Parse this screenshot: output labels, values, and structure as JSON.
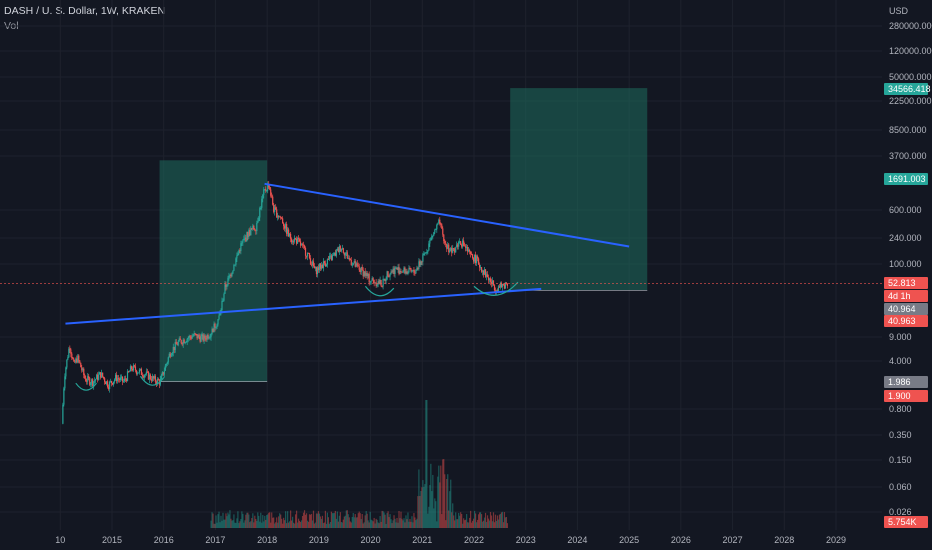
{
  "header": {
    "symbol_line": "DASH / U. S. Dollar, 1W, KRAKEN",
    "volume_label": "Vol"
  },
  "colors": {
    "background": "#131722",
    "up": "#26a69a",
    "down": "#ef5350",
    "trendline": "#2962ff",
    "zone": "#1e6b5c"
  },
  "chart_data": {
    "type": "candlestick",
    "title": "DASH / U. S. Dollar, 1W, KRAKEN",
    "y_scale": "log",
    "currency": "USD",
    "y_ticks": [
      "280000.000",
      "120000.000",
      "50000.000",
      "22500.000",
      "8500.000",
      "3700.000",
      "600.000",
      "240.000",
      "100.000",
      "9.000",
      "4.000",
      "0.800",
      "0.350",
      "0.150",
      "0.060",
      "0.026"
    ],
    "x_ticks": [
      "10",
      "2015",
      "2016",
      "2017",
      "2018",
      "2019",
      "2020",
      "2021",
      "2022",
      "2023",
      "2024",
      "2025",
      "2026",
      "2027",
      "2028",
      "2029"
    ],
    "price_tags": [
      {
        "label": "34566.418",
        "color": "#26a69a",
        "text_color": "#ffffff"
      },
      {
        "label": "1691.003",
        "color": "#26a69a",
        "text_color": "#ffffff"
      },
      {
        "label": "52.813",
        "color": "#ef5350",
        "text_color": "#ffffff"
      },
      {
        "label": "4d 1h",
        "color": "#ef5350",
        "text_color": "#ffffff"
      },
      {
        "label": "40.964",
        "color": "#787b86",
        "text_color": "#ffffff"
      },
      {
        "label": "40.963",
        "color": "#ef5350",
        "text_color": "#ffffff"
      },
      {
        "label": "1.986",
        "color": "#787b86",
        "text_color": "#ffffff"
      },
      {
        "label": "1.900",
        "color": "#ef5350",
        "text_color": "#ffffff"
      },
      {
        "label": "5.754K",
        "color": "#ef5350",
        "text_color": "#ffffff"
      }
    ],
    "path_points": [
      [
        2014.05,
        0.5
      ],
      [
        2014.1,
        2.5
      ],
      [
        2014.2,
        7
      ],
      [
        2014.28,
        3.5
      ],
      [
        2014.35,
        4.5
      ],
      [
        2014.5,
        2.2
      ],
      [
        2014.65,
        2.0
      ],
      [
        2014.8,
        2.6
      ],
      [
        2014.95,
        1.8
      ],
      [
        2015.1,
        2.3
      ],
      [
        2015.25,
        2.0
      ],
      [
        2015.4,
        3.2
      ],
      [
        2015.55,
        2.8
      ],
      [
        2015.7,
        2.5
      ],
      [
        2015.85,
        2.1
      ],
      [
        2015.95,
        2.0
      ],
      [
        2016.15,
        5.5
      ],
      [
        2016.3,
        7.5
      ],
      [
        2016.45,
        8.5
      ],
      [
        2016.6,
        9.5
      ],
      [
        2016.8,
        8.5
      ],
      [
        2016.95,
        11
      ],
      [
        2017.1,
        18
      ],
      [
        2017.2,
        45
      ],
      [
        2017.35,
        85
      ],
      [
        2017.5,
        180
      ],
      [
        2017.65,
        280
      ],
      [
        2017.8,
        350
      ],
      [
        2017.95,
        1050
      ],
      [
        2018.05,
        1450
      ],
      [
        2018.15,
        600
      ],
      [
        2018.3,
        450
      ],
      [
        2018.45,
        250
      ],
      [
        2018.6,
        220
      ],
      [
        2018.8,
        140
      ],
      [
        2018.95,
        80
      ],
      [
        2019.1,
        100
      ],
      [
        2019.3,
        130
      ],
      [
        2019.45,
        180
      ],
      [
        2019.6,
        120
      ],
      [
        2019.75,
        90
      ],
      [
        2019.9,
        75
      ],
      [
        2020.0,
        60
      ],
      [
        2020.15,
        55
      ],
      [
        2020.25,
        52
      ],
      [
        2020.35,
        75
      ],
      [
        2020.5,
        85
      ],
      [
        2020.65,
        80
      ],
      [
        2020.85,
        75
      ],
      [
        2020.95,
        95
      ],
      [
        2021.05,
        130
      ],
      [
        2021.2,
        250
      ],
      [
        2021.35,
        400
      ],
      [
        2021.45,
        200
      ],
      [
        2021.6,
        150
      ],
      [
        2021.75,
        220
      ],
      [
        2021.85,
        180
      ],
      [
        2021.95,
        130
      ],
      [
        2022.05,
        120
      ],
      [
        2022.2,
        80
      ],
      [
        2022.35,
        55
      ],
      [
        2022.45,
        45
      ],
      [
        2022.55,
        48
      ],
      [
        2022.65,
        52.8
      ]
    ]
  }
}
